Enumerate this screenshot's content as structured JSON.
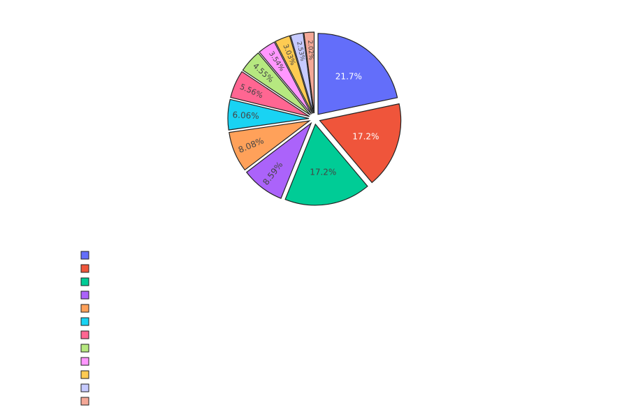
{
  "chart_data": {
    "type": "pie",
    "title": "",
    "legend_position": "bottom-left",
    "sort_order": "descending",
    "direction": "clockwise",
    "start_angle_deg": 0,
    "slices": [
      {
        "label": "21.7%",
        "value": 21.7,
        "color": "#636efa",
        "text_color": "#ffffff"
      },
      {
        "label": "17.2%",
        "value": 17.2,
        "color": "#ef553b",
        "text_color": "#ffffff"
      },
      {
        "label": "17.2%",
        "value": 17.2,
        "color": "#00cc96",
        "text_color": "#444444"
      },
      {
        "label": "8.59%",
        "value": 8.59,
        "color": "#ab63fa",
        "text_color": "#444444"
      },
      {
        "label": "8.08%",
        "value": 8.08,
        "color": "#ffa15a",
        "text_color": "#444444"
      },
      {
        "label": "6.06%",
        "value": 6.06,
        "color": "#19d3f3",
        "text_color": "#444444"
      },
      {
        "label": "5.56%",
        "value": 5.56,
        "color": "#ff6692",
        "text_color": "#444444"
      },
      {
        "label": "4.55%",
        "value": 4.55,
        "color": "#b6e880",
        "text_color": "#444444"
      },
      {
        "label": "3.54%",
        "value": 3.54,
        "color": "#ff97ff",
        "text_color": "#444444"
      },
      {
        "label": "3.03%",
        "value": 3.03,
        "color": "#fecb52",
        "text_color": "#444444"
      },
      {
        "label": "2.53%",
        "value": 2.53,
        "color": "#c6caff",
        "text_color": "#444444"
      },
      {
        "label": "2.02%",
        "value": 2.02,
        "color": "#f4a897",
        "text_color": "#444444"
      }
    ]
  }
}
